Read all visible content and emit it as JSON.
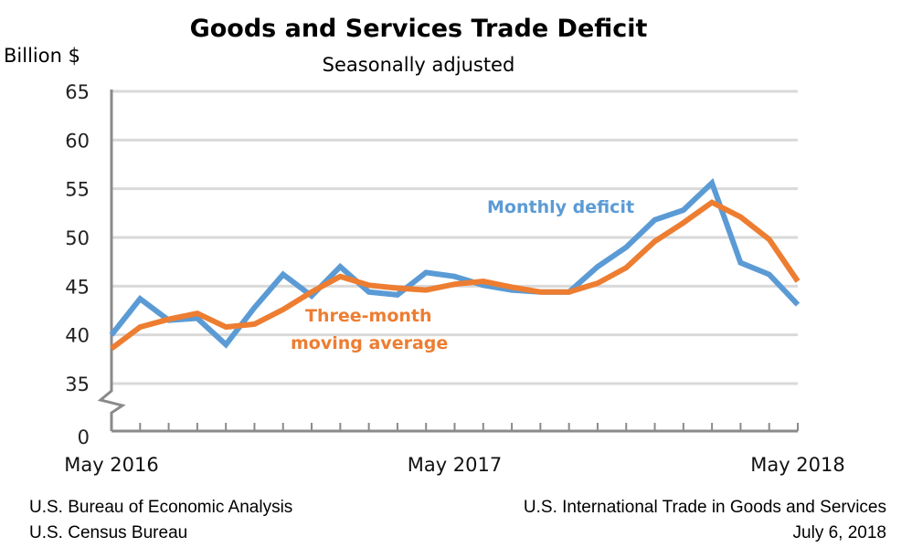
{
  "chart_data": {
    "type": "line",
    "title": "Goods and Services Trade Deficit",
    "subtitle": "Seasonally adjusted",
    "ylabel": "Billion $",
    "xlabel": "",
    "ylim": [
      35,
      65
    ],
    "axis_break": true,
    "yticks": [
      "65",
      "60",
      "55",
      "50",
      "45",
      "40",
      "35",
      "0"
    ],
    "ytick_values": [
      65,
      60,
      55,
      50,
      45,
      40,
      35
    ],
    "x": [
      "May 2016",
      "Jun 2016",
      "Jul 2016",
      "Aug 2016",
      "Sep 2016",
      "Oct 2016",
      "Nov 2016",
      "Dec 2016",
      "Jan 2017",
      "Feb 2017",
      "Mar 2017",
      "Apr 2017",
      "May 2017",
      "Jun 2017",
      "Jul 2017",
      "Aug 2017",
      "Sep 2017",
      "Oct 2017",
      "Nov 2017",
      "Dec 2017",
      "Jan 2018",
      "Feb 2018",
      "Mar 2018",
      "Apr 2018",
      "May 2018"
    ],
    "xtick_labels": [
      {
        "index": 0,
        "label": "May 2016"
      },
      {
        "index": 12,
        "label": "May 2017"
      },
      {
        "index": 24,
        "label": "May 2018"
      }
    ],
    "grid": true,
    "legend": "inline annotations",
    "series": [
      {
        "name": "Monthly deficit",
        "color": "#5b9bd5",
        "values": [
          40.0,
          43.7,
          41.5,
          41.7,
          39.0,
          42.8,
          46.2,
          44.0,
          47.0,
          44.4,
          44.1,
          46.4,
          46.0,
          45.1,
          44.6,
          44.4,
          44.4,
          47.0,
          49.0,
          51.8,
          52.8,
          55.6,
          47.4,
          46.2,
          43.1
        ]
      },
      {
        "name": "Three-month moving average",
        "color": "#ed7d31",
        "values": [
          38.6,
          40.8,
          41.6,
          42.2,
          40.8,
          41.1,
          42.6,
          44.4,
          46.0,
          45.1,
          44.8,
          44.6,
          45.2,
          45.5,
          44.9,
          44.4,
          44.4,
          45.3,
          46.9,
          49.6,
          51.5,
          53.6,
          52.1,
          49.8,
          45.5
        ]
      }
    ],
    "annotations": {
      "monthly": "Monthly deficit",
      "avg_line1": "Three-month",
      "avg_line2": "moving average"
    }
  },
  "footer": {
    "left_line1": "U.S. Bureau of Economic Analysis",
    "left_line2": "U.S. Census Bureau",
    "right_line1": "U.S. International Trade in Goods and Services",
    "right_line2": "July 6, 2018"
  }
}
